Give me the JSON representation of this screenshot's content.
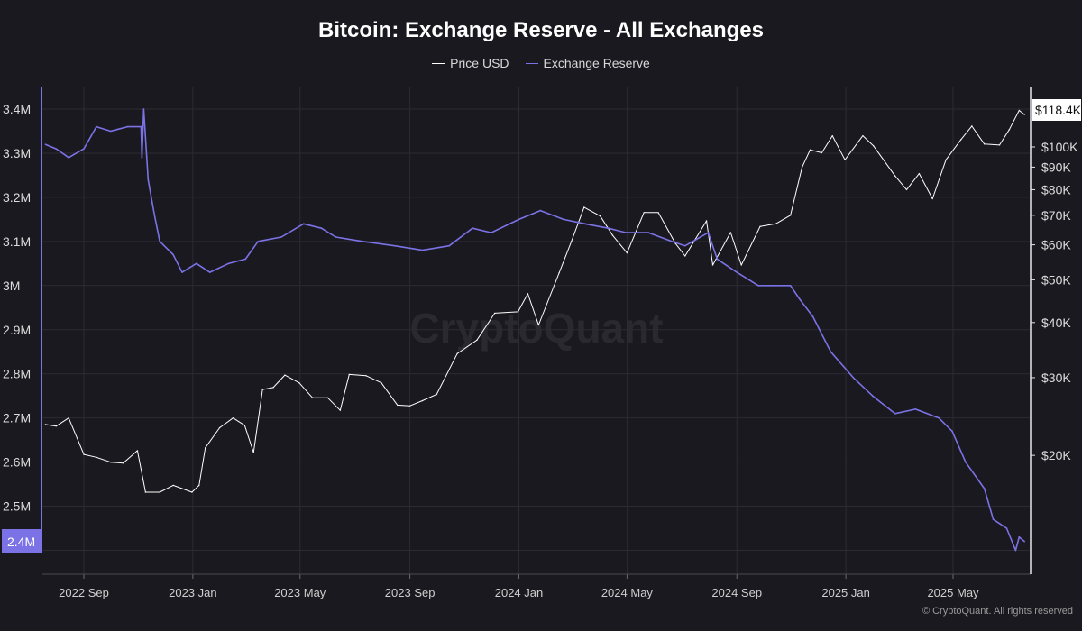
{
  "chart_data": {
    "type": "line",
    "title": "Bitcoin: Exchange Reserve - All Exchanges",
    "watermark": "CryptoQuant",
    "copyright": "© CryptoQuant. All rights reserved",
    "legend_position": "top-center",
    "grid": true,
    "x_ticks": [
      "2022 Sep",
      "2023 Jan",
      "2023 May",
      "2023 Sep",
      "2024 Jan",
      "2024 May",
      "2024 Sep",
      "2025 Jan",
      "2025 May"
    ],
    "x_range": [
      "2022-07",
      "2025-07"
    ],
    "left_axis": {
      "scale": "linear",
      "ylim": [
        2.4,
        3.45
      ],
      "ticks": [
        {
          "v": 3.4,
          "label": "3.4M"
        },
        {
          "v": 3.3,
          "label": "3.3M"
        },
        {
          "v": 3.2,
          "label": "3.2M"
        },
        {
          "v": 3.1,
          "label": "3.1M"
        },
        {
          "v": 3.0,
          "label": "3M"
        },
        {
          "v": 2.9,
          "label": "2.9M"
        },
        {
          "v": 2.8,
          "label": "2.8M"
        },
        {
          "v": 2.7,
          "label": "2.7M"
        },
        {
          "v": 2.6,
          "label": "2.6M"
        },
        {
          "v": 2.5,
          "label": "2.5M"
        }
      ],
      "last_value_label": "2.4M"
    },
    "right_axis": {
      "scale": "log",
      "ticks": [
        {
          "v": 100000,
          "label": "$100K"
        },
        {
          "v": 90000,
          "label": "$90K"
        },
        {
          "v": 80000,
          "label": "$80K"
        },
        {
          "v": 70000,
          "label": "$70K"
        },
        {
          "v": 60000,
          "label": "$60K"
        },
        {
          "v": 50000,
          "label": "$50K"
        },
        {
          "v": 40000,
          "label": "$40K"
        },
        {
          "v": 30000,
          "label": "$30K"
        },
        {
          "v": 20000,
          "label": "$20K"
        }
      ],
      "last_value_label": "$118.4K"
    },
    "series": [
      {
        "name": "Price USD",
        "color": "#ffffff",
        "axis": "right",
        "points": [
          [
            "2022-07-20",
            23500
          ],
          [
            "2022-08-01",
            23300
          ],
          [
            "2022-08-15",
            24300
          ],
          [
            "2022-09-01",
            20100
          ],
          [
            "2022-09-15",
            19800
          ],
          [
            "2022-10-01",
            19300
          ],
          [
            "2022-10-15",
            19200
          ],
          [
            "2022-10-31",
            20500
          ],
          [
            "2022-11-09",
            16500
          ],
          [
            "2022-11-25",
            16500
          ],
          [
            "2022-12-10",
            17100
          ],
          [
            "2022-12-31",
            16500
          ],
          [
            "2023-01-08",
            17100
          ],
          [
            "2023-01-15",
            20800
          ],
          [
            "2023-01-31",
            23100
          ],
          [
            "2023-02-15",
            24300
          ],
          [
            "2023-02-28",
            23400
          ],
          [
            "2023-03-10",
            20300
          ],
          [
            "2023-03-20",
            28200
          ],
          [
            "2023-04-01",
            28500
          ],
          [
            "2023-04-14",
            30400
          ],
          [
            "2023-04-30",
            29200
          ],
          [
            "2023-05-15",
            27000
          ],
          [
            "2023-06-01",
            27000
          ],
          [
            "2023-06-15",
            25300
          ],
          [
            "2023-06-25",
            30500
          ],
          [
            "2023-07-14",
            30300
          ],
          [
            "2023-07-31",
            29200
          ],
          [
            "2023-08-18",
            26000
          ],
          [
            "2023-09-01",
            25900
          ],
          [
            "2023-09-15",
            26600
          ],
          [
            "2023-10-01",
            27500
          ],
          [
            "2023-10-24",
            34000
          ],
          [
            "2023-11-15",
            36500
          ],
          [
            "2023-12-05",
            42000
          ],
          [
            "2023-12-31",
            42300
          ],
          [
            "2024-01-11",
            46500
          ],
          [
            "2024-01-23",
            39500
          ],
          [
            "2024-02-15",
            51800
          ],
          [
            "2024-02-29",
            61200
          ],
          [
            "2024-03-14",
            73000
          ],
          [
            "2024-04-01",
            69700
          ],
          [
            "2024-04-15",
            63000
          ],
          [
            "2024-05-01",
            57500
          ],
          [
            "2024-05-20",
            71000
          ],
          [
            "2024-06-05",
            71000
          ],
          [
            "2024-06-24",
            60500
          ],
          [
            "2024-07-05",
            56600
          ],
          [
            "2024-07-29",
            68000
          ],
          [
            "2024-08-05",
            54000
          ],
          [
            "2024-08-25",
            64000
          ],
          [
            "2024-09-06",
            54000
          ],
          [
            "2024-09-27",
            66000
          ],
          [
            "2024-10-15",
            67000
          ],
          [
            "2024-10-31",
            70000
          ],
          [
            "2024-11-13",
            90000
          ],
          [
            "2024-11-22",
            98500
          ],
          [
            "2024-12-05",
            97000
          ],
          [
            "2024-12-17",
            106000
          ],
          [
            "2024-12-31",
            93500
          ],
          [
            "2025-01-20",
            106000
          ],
          [
            "2025-02-01",
            100500
          ],
          [
            "2025-02-25",
            86000
          ],
          [
            "2025-03-10",
            80000
          ],
          [
            "2025-03-24",
            87000
          ],
          [
            "2025-04-08",
            76300
          ],
          [
            "2025-04-23",
            93500
          ],
          [
            "2025-05-10",
            104000
          ],
          [
            "2025-05-22",
            111500
          ],
          [
            "2025-06-05",
            101500
          ],
          [
            "2025-06-22",
            101000
          ],
          [
            "2025-07-03",
            109500
          ],
          [
            "2025-07-14",
            121000
          ],
          [
            "2025-07-20",
            118400
          ]
        ]
      },
      {
        "name": "Exchange Reserve",
        "color": "#7b72e6",
        "axis": "left",
        "points": [
          [
            "2022-07-20",
            3.32
          ],
          [
            "2022-08-01",
            3.31
          ],
          [
            "2022-08-15",
            3.29
          ],
          [
            "2022-09-01",
            3.31
          ],
          [
            "2022-09-15",
            3.36
          ],
          [
            "2022-10-01",
            3.35
          ],
          [
            "2022-10-20",
            3.36
          ],
          [
            "2022-11-04",
            3.36
          ],
          [
            "2022-11-05",
            3.29
          ],
          [
            "2022-11-07",
            3.4
          ],
          [
            "2022-11-12",
            3.24
          ],
          [
            "2022-11-19",
            3.16
          ],
          [
            "2022-11-25",
            3.1
          ],
          [
            "2022-12-10",
            3.07
          ],
          [
            "2022-12-20",
            3.03
          ],
          [
            "2023-01-05",
            3.05
          ],
          [
            "2023-01-20",
            3.03
          ],
          [
            "2023-02-10",
            3.05
          ],
          [
            "2023-03-01",
            3.06
          ],
          [
            "2023-03-15",
            3.1
          ],
          [
            "2023-04-10",
            3.11
          ],
          [
            "2023-05-05",
            3.14
          ],
          [
            "2023-05-25",
            3.13
          ],
          [
            "2023-06-10",
            3.11
          ],
          [
            "2023-07-10",
            3.1
          ],
          [
            "2023-08-15",
            3.09
          ],
          [
            "2023-09-15",
            3.08
          ],
          [
            "2023-10-15",
            3.09
          ],
          [
            "2023-11-10",
            3.13
          ],
          [
            "2023-12-01",
            3.12
          ],
          [
            "2024-01-01",
            3.15
          ],
          [
            "2024-01-25",
            3.17
          ],
          [
            "2024-02-20",
            3.15
          ],
          [
            "2024-03-15",
            3.14
          ],
          [
            "2024-04-10",
            3.13
          ],
          [
            "2024-04-30",
            3.12
          ],
          [
            "2024-05-25",
            3.12
          ],
          [
            "2024-06-20",
            3.1
          ],
          [
            "2024-07-05",
            3.09
          ],
          [
            "2024-07-31",
            3.12
          ],
          [
            "2024-08-10",
            3.06
          ],
          [
            "2024-09-01",
            3.03
          ],
          [
            "2024-09-25",
            3.0
          ],
          [
            "2024-10-15",
            3.0
          ],
          [
            "2024-10-31",
            3.0
          ],
          [
            "2024-11-10",
            2.97
          ],
          [
            "2024-11-25",
            2.93
          ],
          [
            "2024-12-15",
            2.85
          ],
          [
            "2025-01-10",
            2.79
          ],
          [
            "2025-01-31",
            2.75
          ],
          [
            "2025-02-25",
            2.71
          ],
          [
            "2025-03-20",
            2.72
          ],
          [
            "2025-04-15",
            2.7
          ],
          [
            "2025-04-30",
            2.67
          ],
          [
            "2025-05-15",
            2.6
          ],
          [
            "2025-06-05",
            2.54
          ],
          [
            "2025-06-15",
            2.47
          ],
          [
            "2025-06-30",
            2.45
          ],
          [
            "2025-07-10",
            2.4
          ],
          [
            "2025-07-14",
            2.43
          ],
          [
            "2025-07-20",
            2.42
          ]
        ]
      }
    ]
  }
}
